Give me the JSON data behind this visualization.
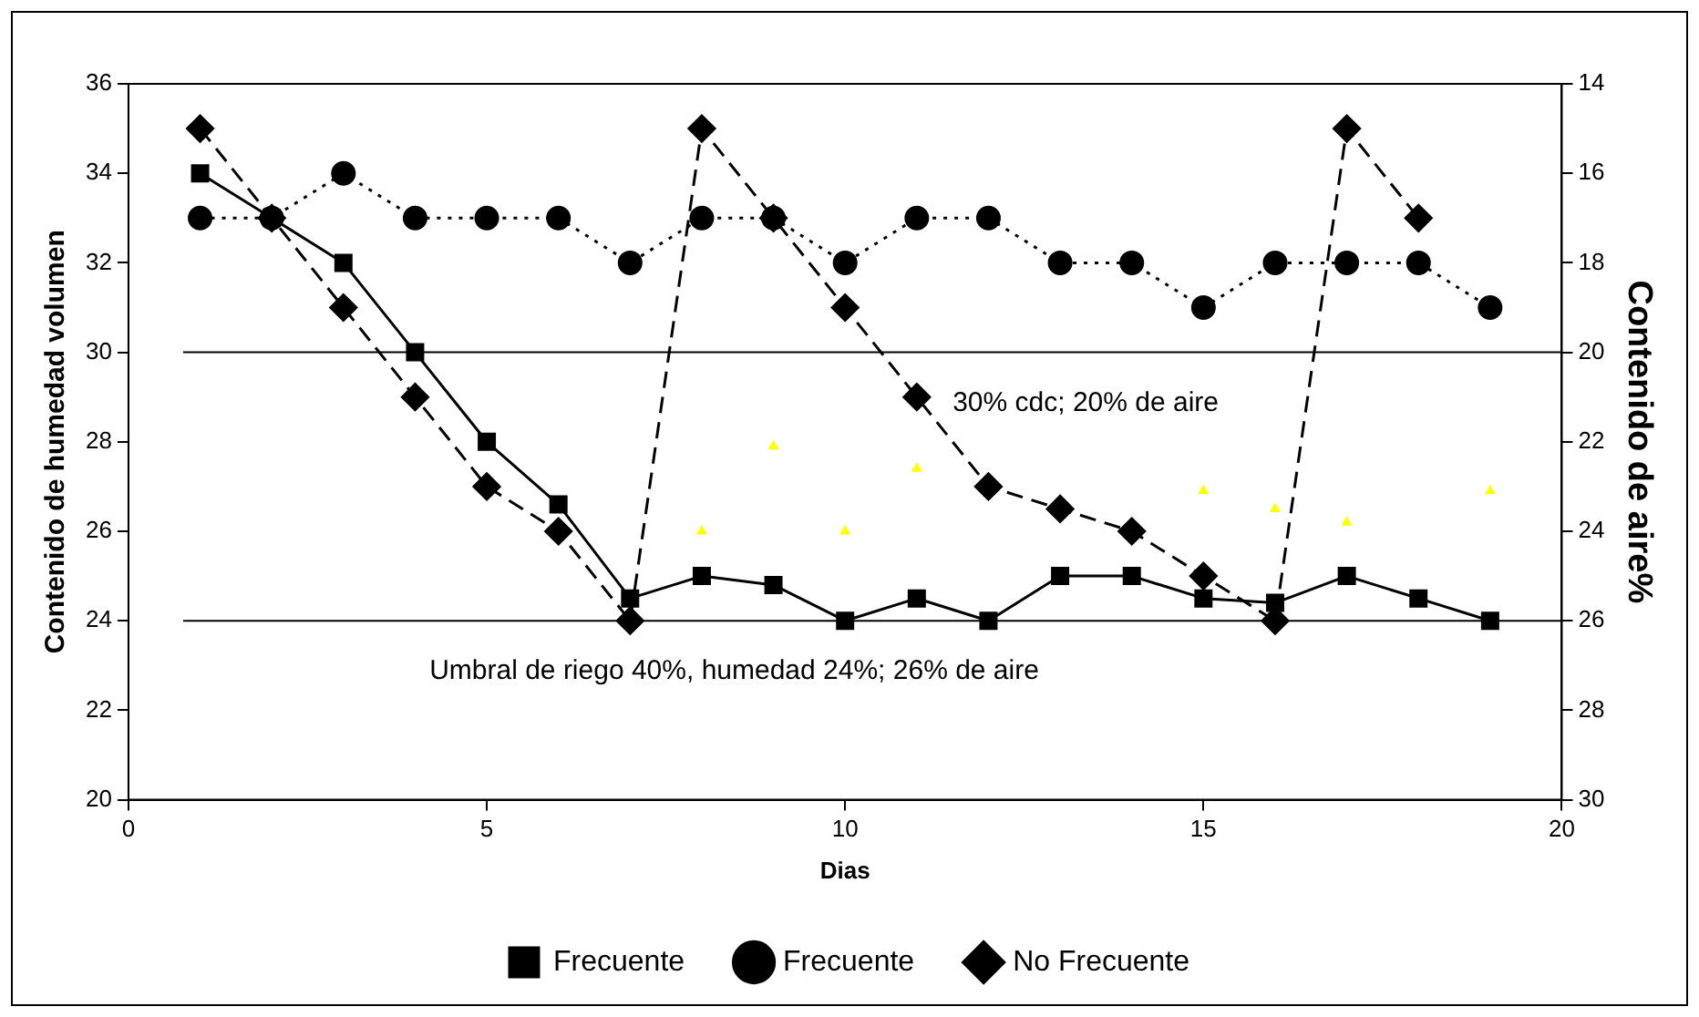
{
  "chart_data": {
    "type": "line",
    "xlabel": "Dias",
    "ylabel": "Contenido de humedad volumen",
    "y2label": "Contenido de aire%",
    "x": [
      1,
      2,
      3,
      4,
      5,
      6,
      7,
      8,
      9,
      10,
      11,
      12,
      13,
      14,
      15,
      16,
      17,
      18,
      19
    ],
    "series": [
      {
        "name": "Frecuente",
        "color": "#000000",
        "marker": "square",
        "line_style": "solid",
        "values": [
          34,
          33,
          32,
          30,
          28,
          26.6,
          24.5,
          25,
          24.8,
          24,
          24.5,
          24,
          25,
          25,
          24.5,
          24.4,
          25,
          24.5,
          24
        ]
      },
      {
        "name": "Frecuente",
        "color": "#000000",
        "marker": "circle",
        "line_style": "dotted",
        "axis": "y2",
        "values": [
          17,
          17,
          16,
          17,
          17,
          17,
          18,
          17,
          17,
          18,
          17,
          17,
          18,
          18,
          19,
          18,
          18,
          18,
          19
        ]
      },
      {
        "name": "No Frecuente",
        "color": "#000000",
        "marker": "diamond",
        "line_style": "dashed",
        "values": [
          35,
          33,
          31,
          29,
          27,
          26,
          24,
          35,
          33,
          31,
          29,
          27,
          26.5,
          26,
          25,
          24,
          35,
          33,
          null
        ]
      },
      {
        "type": "scatter",
        "color": "#ffff00",
        "marker": "triangle",
        "x": [
          8,
          9,
          10,
          11,
          15,
          16,
          17,
          19
        ],
        "values": [
          26,
          27.9,
          26,
          27.4,
          26.9,
          26.5,
          26.2,
          26.9
        ]
      }
    ],
    "xlim": [
      0,
      20
    ],
    "xticks": [
      0,
      5,
      10,
      15,
      20
    ],
    "ylim": [
      20,
      36
    ],
    "yticks": [
      20,
      22,
      24,
      26,
      28,
      30,
      32,
      34,
      36
    ],
    "y2lim": [
      30,
      14
    ],
    "y2ticks": [
      14,
      16,
      18,
      20,
      22,
      24,
      26,
      28,
      30
    ],
    "ref_lines": [
      {
        "axis": "y",
        "value": 30,
        "label": "30% cdc; 20% de aire"
      },
      {
        "axis": "y",
        "value": 24,
        "label": "Umbral de riego 40%, humedad 24%; 26% de aire"
      }
    ],
    "grid": false,
    "legend": "bottom"
  }
}
